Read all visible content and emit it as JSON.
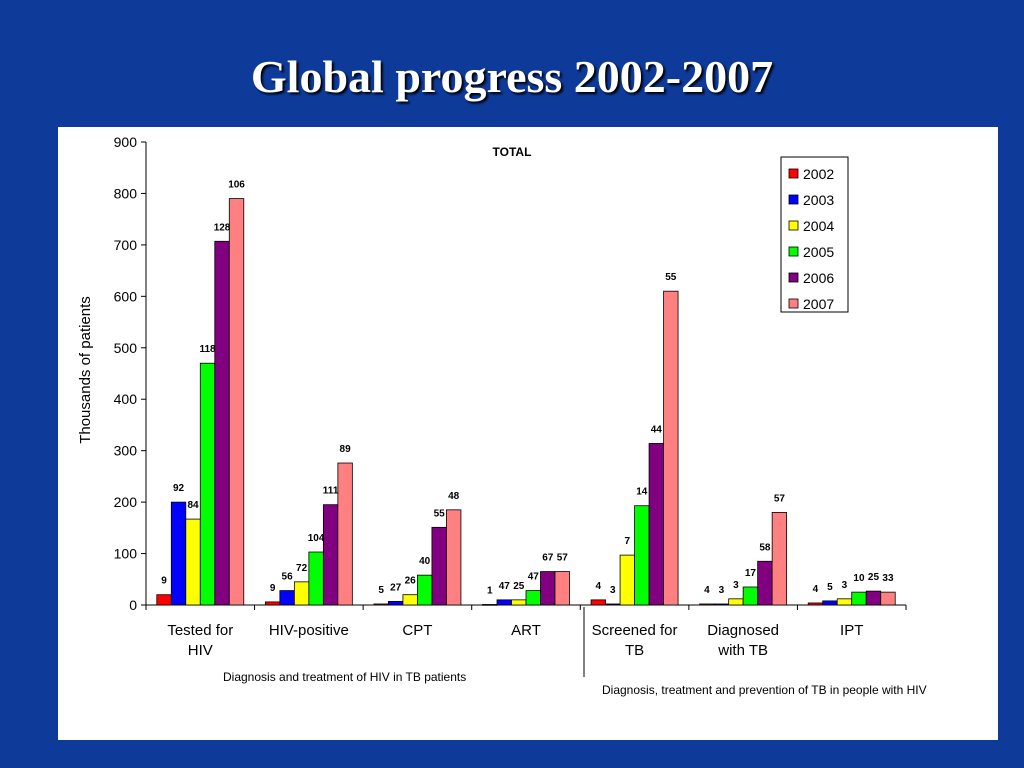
{
  "slide": {
    "title": "Global progress 2002-2007"
  },
  "chart_data": {
    "type": "bar",
    "title": "TOTAL",
    "ylabel": "Thousands of patients",
    "ylim": [
      0,
      900
    ],
    "yticks": [
      0,
      100,
      200,
      300,
      400,
      500,
      600,
      700,
      800,
      900
    ],
    "categories": [
      [
        "Tested for",
        "HIV"
      ],
      [
        "HIV-positive"
      ],
      [
        "CPT"
      ],
      [
        "ART"
      ],
      [
        "Screened for",
        "TB"
      ],
      [
        "Diagnosed",
        "with TB"
      ],
      [
        "IPT"
      ]
    ],
    "series": [
      {
        "name": "2002",
        "color": "#ff0000",
        "values": [
          20,
          6,
          2,
          1,
          10,
          2,
          4
        ],
        "labels": [
          "9",
          "9",
          "5",
          "1",
          "4",
          "4",
          "4"
        ]
      },
      {
        "name": "2003",
        "color": "#0000ff",
        "values": [
          200,
          28,
          7,
          10,
          2,
          2,
          8
        ],
        "labels": [
          "92",
          "56",
          "27",
          "47",
          "3",
          "3",
          "5"
        ]
      },
      {
        "name": "2004",
        "color": "#ffff00",
        "values": [
          167,
          45,
          20,
          10,
          97,
          12,
          12
        ],
        "labels": [
          "84",
          "72",
          "26",
          "25",
          "7",
          "3",
          "3"
        ]
      },
      {
        "name": "2005",
        "color": "#00ff00",
        "values": [
          470,
          103,
          58,
          28,
          193,
          35,
          25
        ],
        "labels": [
          "118",
          "104",
          "40",
          "47",
          "14",
          "17",
          "10"
        ]
      },
      {
        "name": "2006",
        "color": "#800080",
        "values": [
          707,
          195,
          151,
          65,
          314,
          85,
          27
        ],
        "labels": [
          "128",
          "111",
          "55",
          "67",
          "44",
          "58",
          "25"
        ]
      },
      {
        "name": "2007",
        "color": "#ff8080",
        "values": [
          790,
          276,
          185,
          65,
          610,
          180,
          25
        ],
        "labels": [
          "106",
          "89",
          "48",
          "57",
          "55",
          "57",
          "33"
        ]
      }
    ],
    "legend_position": "top-right",
    "annotations": [
      "Diagnosis and treatment of HIV in TB patients",
      "Diagnosis, treatment and prevention of TB in people with HIV"
    ]
  }
}
